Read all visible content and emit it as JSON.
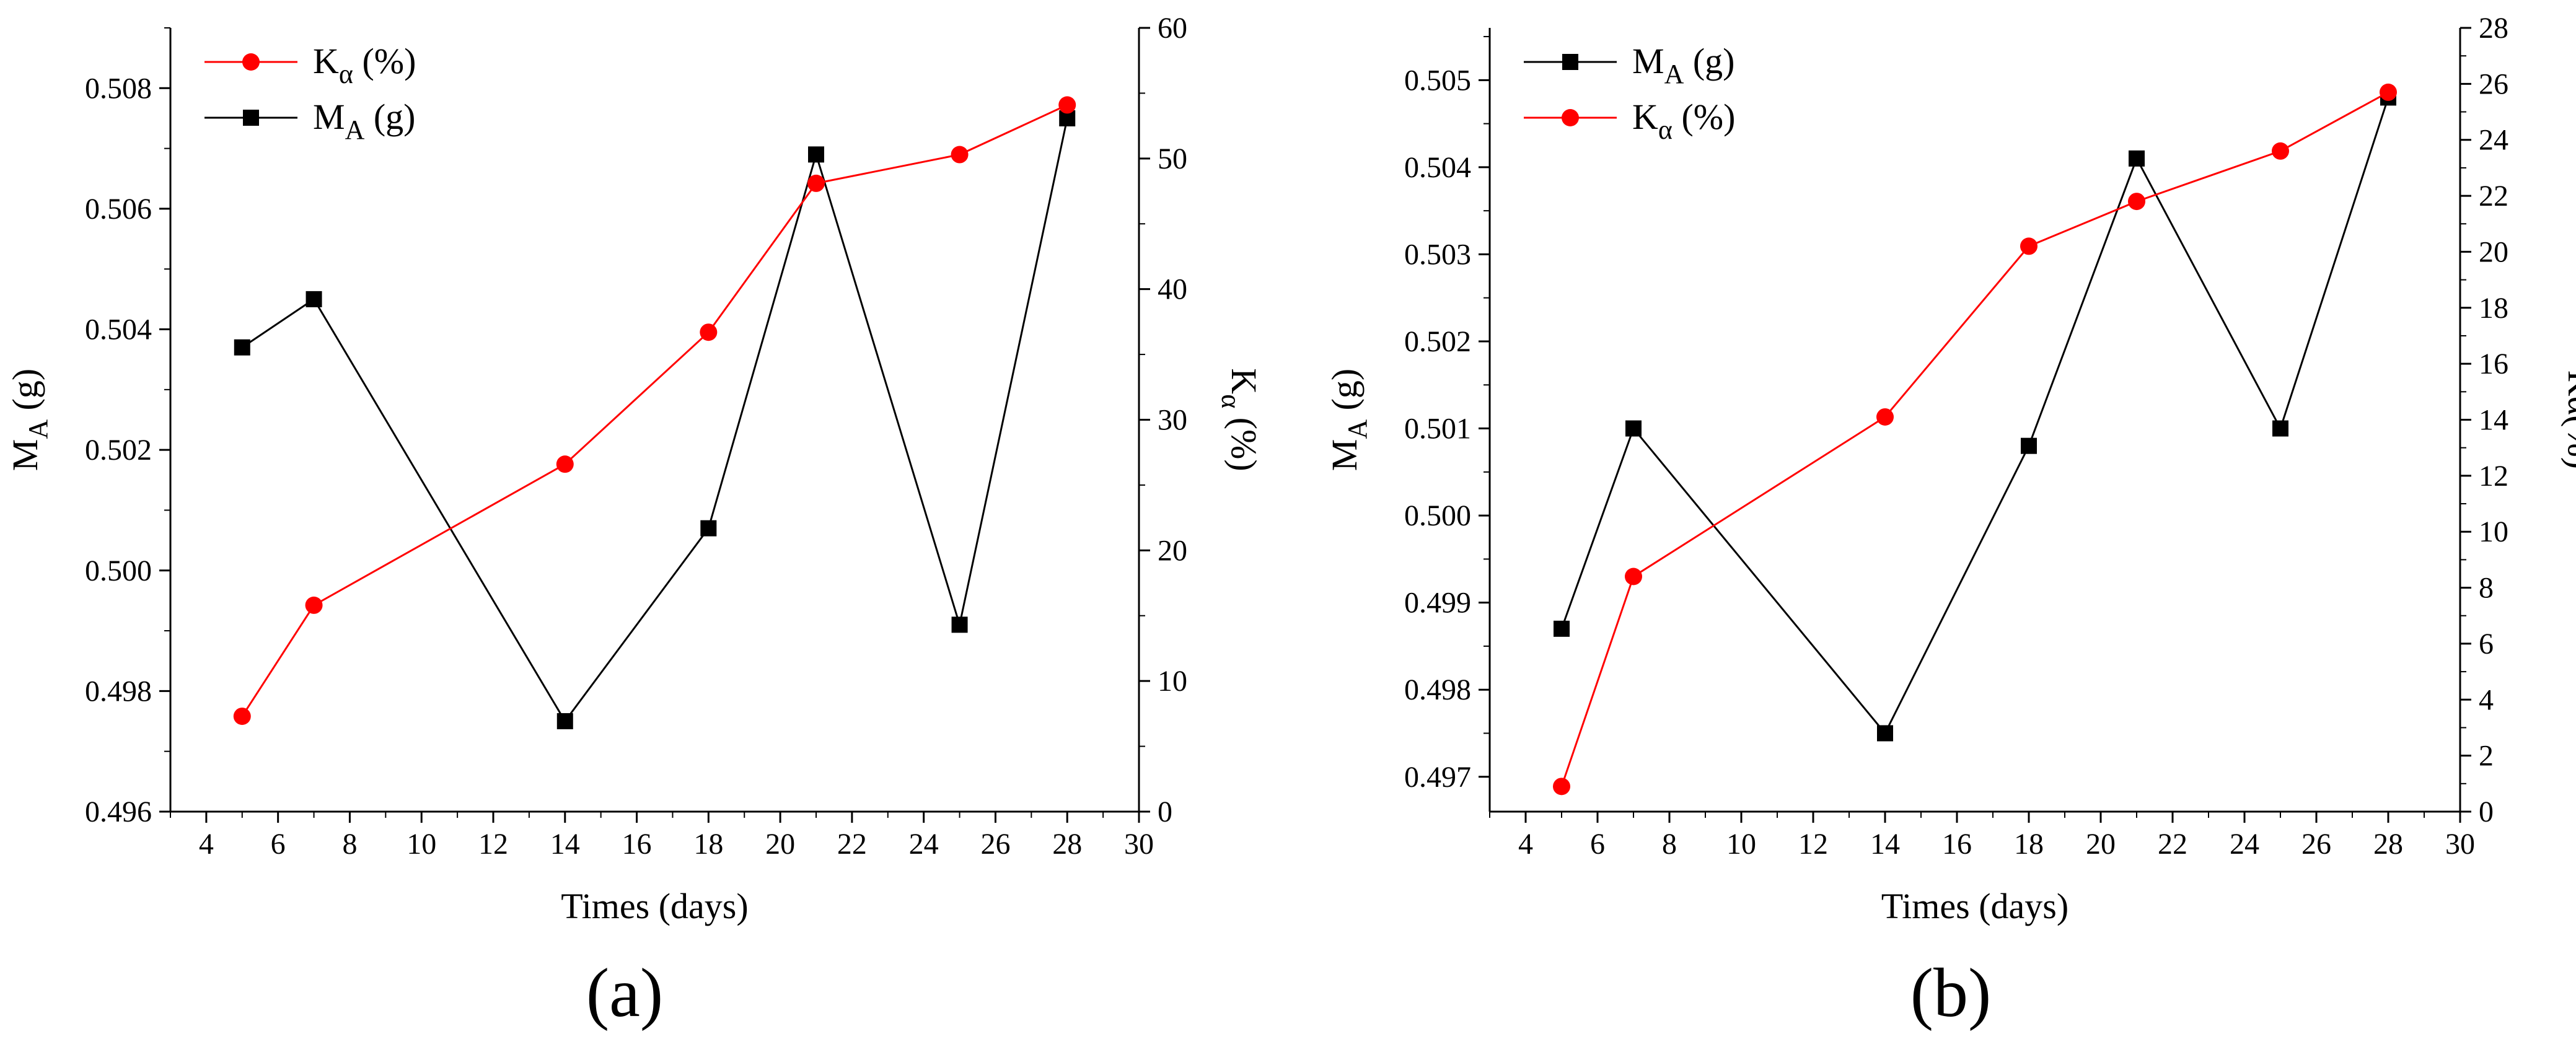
{
  "colors": {
    "ma": "#000000",
    "ka": "#ff0000"
  },
  "chart_data": [
    {
      "type": "line",
      "panel_label": "(a)",
      "xlabel": "Times (days)",
      "ylabel_left": {
        "main": "M",
        "sub": "A",
        "rest": " (g)"
      },
      "ylabel_right": {
        "main": "K",
        "sub": "α",
        "rest": " (%)"
      },
      "xlim": [
        3,
        30
      ],
      "xticks": [
        "4",
        "6",
        "8",
        "10",
        "12",
        "14",
        "16",
        "18",
        "20",
        "22",
        "24",
        "26",
        "28",
        "30"
      ],
      "ylim_left": [
        0.496,
        0.509
      ],
      "yticks_left": [
        "0.496",
        "0.498",
        "0.500",
        "0.502",
        "0.504",
        "0.506",
        "0.508"
      ],
      "ylim_right": [
        0,
        60
      ],
      "yticks_right": [
        "0",
        "10",
        "20",
        "30",
        "40",
        "50",
        "60"
      ],
      "legend": [
        {
          "main": "K",
          "sub": "α",
          "rest": "  (%)",
          "series": "ka"
        },
        {
          "main": "M",
          "sub": "A",
          "rest": " (g)",
          "series": "ma"
        }
      ],
      "series": [
        {
          "id": "ma",
          "name": "MA (g)",
          "axis": "left",
          "marker": "square",
          "x": [
            5,
            7,
            14,
            18,
            21,
            25,
            28
          ],
          "values": [
            0.5037,
            0.5045,
            0.4975,
            0.5007,
            0.5069,
            0.4991,
            0.5075
          ]
        },
        {
          "id": "ka",
          "name": "Kα (%)",
          "axis": "right",
          "marker": "circle",
          "x": [
            5,
            7,
            14,
            18,
            21,
            25,
            28
          ],
          "values": [
            7.3,
            15.8,
            26.6,
            36.7,
            48.1,
            50.3,
            54.1
          ]
        }
      ]
    },
    {
      "type": "line",
      "panel_label": "(b)",
      "xlabel": "Times  (days)",
      "ylabel_left": {
        "main": "M",
        "sub": "A",
        "rest": "  (g)"
      },
      "ylabel_right": {
        "main": "Kα(%)",
        "sub": "",
        "rest": ""
      },
      "xlim": [
        3,
        30
      ],
      "xticks": [
        "4",
        "6",
        "8",
        "10",
        "12",
        "14",
        "16",
        "18",
        "20",
        "22",
        "24",
        "26",
        "28",
        "30"
      ],
      "ylim_left": [
        0.4966,
        0.5056
      ],
      "yticks_left": [
        "0.497",
        "0.498",
        "0.499",
        "0.500",
        "0.501",
        "0.502",
        "0.503",
        "0.504",
        "0.505"
      ],
      "ylim_right": [
        0,
        28
      ],
      "yticks_right": [
        "0",
        "2",
        "4",
        "6",
        "8",
        "10",
        "12",
        "14",
        "16",
        "18",
        "20",
        "22",
        "24",
        "26",
        "28"
      ],
      "legend": [
        {
          "main": "M",
          "sub": "A",
          "rest": " (g)",
          "series": "ma"
        },
        {
          "main": "K",
          "sub": "α",
          "rest": "  (%)",
          "series": "ka"
        }
      ],
      "series": [
        {
          "id": "ma",
          "name": "MA (g)",
          "axis": "left",
          "marker": "square",
          "x": [
            5,
            7,
            14,
            18,
            21,
            25,
            28
          ],
          "values": [
            0.4987,
            0.501,
            0.4975,
            0.5008,
            0.5041,
            0.501,
            0.5048
          ]
        },
        {
          "id": "ka",
          "name": "Kα (%)",
          "axis": "right",
          "marker": "circle",
          "x": [
            5,
            7,
            14,
            18,
            21,
            25,
            28
          ],
          "values": [
            0.9,
            8.4,
            14.1,
            20.2,
            21.8,
            23.6,
            25.7
          ]
        }
      ]
    }
  ]
}
